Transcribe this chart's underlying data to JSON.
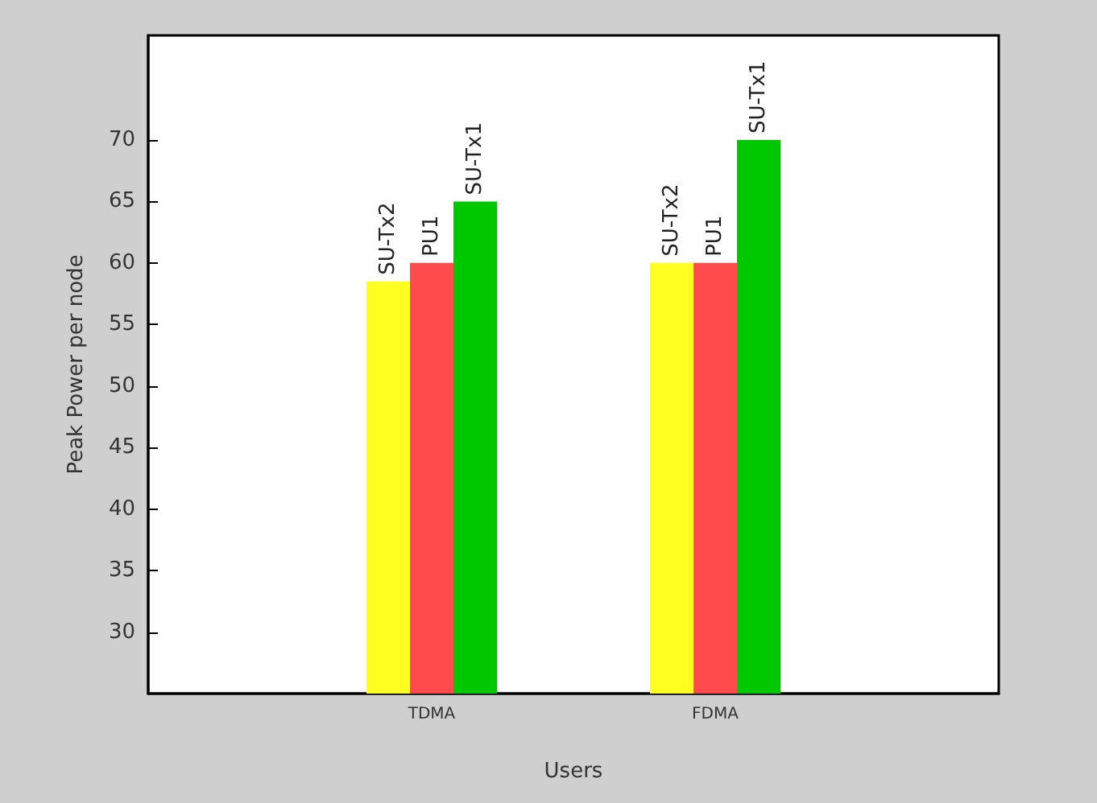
{
  "chart_data": {
    "type": "bar",
    "xlabel": "Users",
    "ylabel": "Peak Power per node",
    "categories": [
      null,
      "TDMA",
      "FDMA",
      null
    ],
    "series": [
      {
        "name": "SU-Tx2",
        "color": "#ffff22",
        "values": [
          null,
          58.5,
          60,
          null
        ]
      },
      {
        "name": "PU1",
        "color": "#ff4b4b",
        "values": [
          null,
          60,
          60,
          null
        ]
      },
      {
        "name": "SU-Tx1",
        "color": "#00c800",
        "values": [
          null,
          65,
          70,
          null
        ]
      }
    ],
    "ylim": [
      25,
      78.5
    ],
    "yticks": [
      30,
      35,
      40,
      45,
      50,
      55,
      60,
      65,
      70
    ],
    "grid": false,
    "legend": false
  }
}
